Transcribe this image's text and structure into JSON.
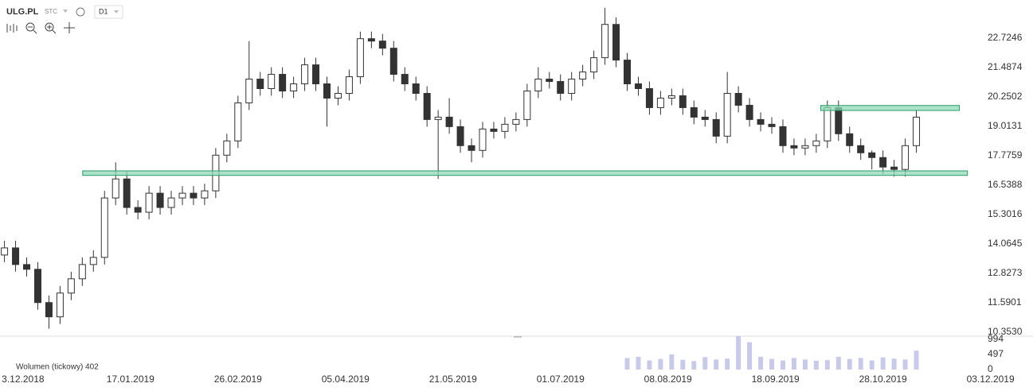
{
  "header": {
    "symbol": "ULG.PL",
    "market": "STC",
    "interval": "D1"
  },
  "chart_data": {
    "type": "candlestick",
    "x": [
      -5,
      -2,
      1,
      4,
      7,
      10,
      13,
      16,
      19,
      22,
      25,
      28,
      31,
      34,
      37,
      40,
      43,
      46,
      49,
      52,
      55,
      58,
      61,
      64,
      67,
      70,
      73,
      76,
      79,
      82,
      85,
      88,
      91,
      94,
      97,
      100,
      103,
      106,
      109,
      112,
      115,
      118,
      121,
      124,
      127,
      130,
      133,
      136,
      139,
      142,
      145,
      148,
      151,
      154,
      157,
      160,
      163,
      166,
      169,
      172,
      175,
      178,
      181,
      184,
      187,
      190,
      193,
      196,
      199,
      202,
      205,
      208,
      211,
      214,
      217,
      220,
      223,
      226,
      229,
      232,
      235,
      238,
      241
    ],
    "open": [
      13.6,
      13.9,
      13.2,
      13.0,
      11.6,
      11.0,
      12.0,
      12.6,
      13.2,
      13.5,
      16.0,
      16.8,
      15.6,
      15.4,
      16.2,
      15.6,
      16.0,
      16.2,
      16.0,
      16.3,
      17.8,
      18.4,
      20.0,
      21.0,
      20.6,
      21.2,
      20.5,
      20.8,
      21.6,
      20.8,
      20.2,
      20.4,
      21.1,
      22.7,
      22.6,
      22.3,
      21.2,
      20.8,
      20.4,
      19.3,
      19.4,
      19.0,
      18.2,
      18.0,
      18.9,
      18.8,
      19.1,
      19.3,
      20.5,
      21.0,
      20.9,
      20.4,
      21.0,
      21.3,
      21.9,
      23.3,
      21.8,
      20.8,
      20.6,
      19.8,
      20.2,
      20.3,
      19.8,
      19.4,
      19.3,
      18.6,
      20.4,
      19.9,
      19.3,
      19.1,
      19.0,
      18.2,
      18.1,
      18.2,
      18.4,
      19.8,
      18.7,
      18.2,
      17.9,
      17.7,
      17.3,
      17.2,
      18.2
    ],
    "high": [
      14.2,
      14.2,
      13.5,
      13.3,
      11.9,
      12.3,
      12.9,
      13.5,
      13.8,
      16.3,
      17.5,
      17.1,
      15.9,
      16.5,
      16.5,
      16.3,
      16.5,
      16.5,
      16.6,
      18.1,
      18.7,
      20.3,
      22.6,
      21.3,
      21.5,
      21.5,
      21.1,
      21.9,
      21.9,
      21.1,
      20.7,
      21.4,
      23.0,
      23.0,
      22.9,
      22.6,
      21.5,
      21.1,
      20.7,
      19.7,
      20.2,
      19.3,
      18.5,
      19.2,
      19.2,
      19.4,
      19.6,
      20.8,
      21.5,
      21.3,
      21.2,
      21.3,
      21.6,
      22.2,
      24.0,
      23.6,
      22.1,
      21.1,
      20.9,
      20.5,
      20.6,
      20.6,
      20.1,
      19.7,
      19.6,
      21.3,
      20.7,
      20.2,
      19.6,
      19.4,
      19.3,
      18.5,
      18.5,
      18.7,
      20.1,
      20.1,
      19.0,
      18.5,
      18.0,
      18.0,
      17.6,
      18.5,
      19.7
    ],
    "low": [
      13.3,
      12.9,
      12.7,
      11.3,
      10.5,
      10.7,
      11.7,
      12.3,
      12.9,
      13.2,
      15.7,
      15.3,
      15.1,
      15.1,
      15.3,
      15.3,
      15.7,
      15.7,
      15.7,
      16.0,
      17.5,
      18.1,
      19.7,
      20.3,
      20.3,
      20.2,
      20.2,
      20.5,
      20.5,
      19.0,
      19.9,
      20.1,
      20.8,
      22.3,
      22.0,
      20.9,
      20.5,
      20.1,
      19.0,
      16.8,
      18.7,
      17.9,
      17.5,
      17.7,
      18.5,
      18.5,
      18.8,
      19.0,
      20.2,
      20.6,
      20.1,
      20.1,
      20.7,
      21.0,
      21.6,
      21.5,
      20.5,
      20.3,
      19.5,
      19.5,
      19.9,
      19.5,
      19.1,
      19.0,
      18.3,
      18.3,
      19.6,
      19.0,
      18.8,
      18.7,
      17.9,
      17.8,
      17.8,
      17.9,
      18.1,
      18.4,
      17.9,
      17.6,
      17.2,
      17.0,
      16.9,
      16.9,
      17.9
    ],
    "close": [
      13.9,
      13.2,
      13.0,
      11.6,
      11.0,
      12.0,
      12.6,
      13.2,
      13.5,
      16.0,
      16.8,
      15.6,
      15.4,
      16.2,
      15.6,
      16.0,
      16.2,
      16.0,
      16.3,
      17.8,
      18.4,
      20.0,
      21.0,
      20.6,
      21.2,
      20.5,
      20.8,
      21.6,
      20.8,
      20.2,
      20.4,
      21.1,
      22.7,
      22.6,
      22.3,
      21.2,
      20.8,
      20.4,
      19.3,
      19.4,
      19.0,
      18.2,
      18.0,
      18.9,
      18.8,
      19.1,
      19.3,
      20.5,
      21.0,
      20.9,
      20.4,
      21.0,
      21.3,
      21.9,
      23.3,
      21.8,
      20.8,
      20.6,
      19.8,
      20.2,
      20.3,
      19.8,
      19.4,
      19.3,
      18.6,
      20.4,
      19.9,
      19.3,
      19.1,
      19.0,
      18.2,
      18.1,
      18.2,
      18.4,
      19.8,
      18.7,
      18.2,
      17.9,
      17.7,
      17.3,
      17.2,
      18.2,
      19.4
    ],
    "volume": [
      null,
      null,
      null,
      null,
      null,
      null,
      null,
      null,
      null,
      null,
      null,
      null,
      null,
      null,
      null,
      null,
      null,
      null,
      null,
      null,
      null,
      null,
      null,
      null,
      null,
      null,
      null,
      null,
      null,
      null,
      null,
      null,
      null,
      null,
      null,
      null,
      null,
      null,
      null,
      null,
      null,
      null,
      null,
      null,
      null,
      null,
      null,
      null,
      null,
      null,
      null,
      null,
      null,
      null,
      null,
      null,
      380,
      420,
      300,
      350,
      500,
      320,
      280,
      410,
      330,
      360,
      1100,
      900,
      420,
      350,
      300,
      380,
      330,
      290,
      310,
      420,
      350,
      380,
      300,
      400,
      360,
      330,
      620
    ],
    "volume_label": "Wolumen (tickowy) 402",
    "xlim": [
      -6.2,
      257
    ],
    "xticks": [
      {
        "value": 0,
        "label": "3.12.2018"
      },
      {
        "value": 29,
        "label": "17.01.2019"
      },
      {
        "value": 58,
        "label": "26.02.2019"
      },
      {
        "value": 87,
        "label": "05.04.2019"
      },
      {
        "value": 116,
        "label": "21.05.2019"
      },
      {
        "value": 145,
        "label": "01.07.2019"
      },
      {
        "value": 174,
        "label": "08.08.2019"
      },
      {
        "value": 203,
        "label": "18.09.2019"
      },
      {
        "value": 232,
        "label": "28.10.2019"
      },
      {
        "value": 261,
        "label": "03.12.2019"
      }
    ],
    "ylim": [
      10.22,
      24.06
    ],
    "yticks": [
      {
        "value": 10.353,
        "label": "10.3530"
      },
      11.5901,
      12.8273,
      14.0645,
      15.3016,
      16.5388,
      17.7759,
      19.0131,
      20.2502,
      21.4874,
      22.7246
    ],
    "vlim": [
      0,
      1099
    ],
    "vticks": [
      0,
      497,
      994
    ],
    "zones": [
      {
        "x": [
          16.1,
          254.8
        ],
        "y": [
          16.95,
          17.14
        ]
      },
      {
        "x": [
          215.2,
          252.6
        ],
        "y": [
          19.68,
          19.89
        ]
      }
    ],
    "up_color": "#ffffff",
    "down_color": "#333333",
    "zone_color": "#8fd9b6",
    "volume_color": "#c9c9e8"
  }
}
